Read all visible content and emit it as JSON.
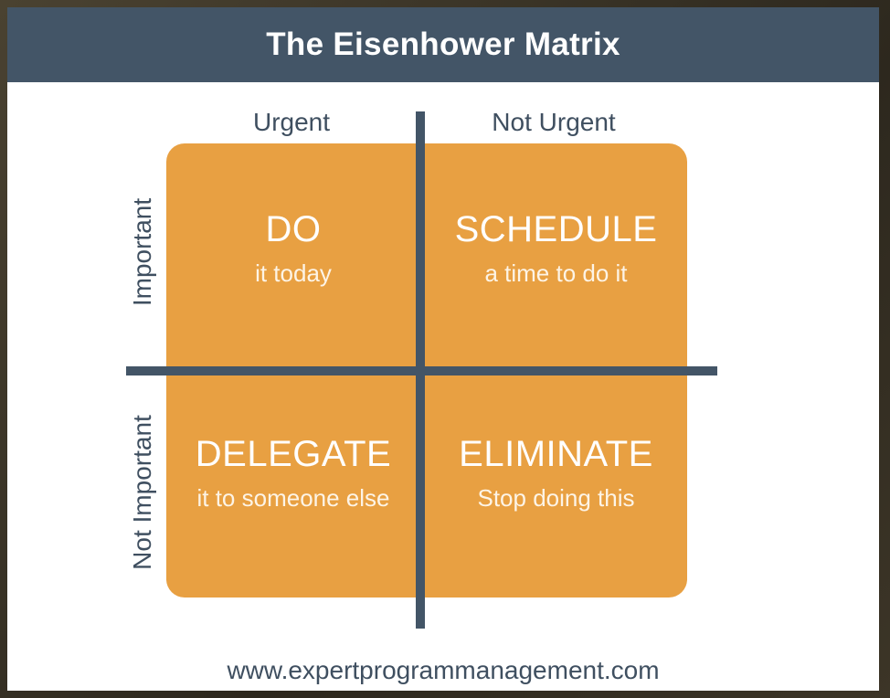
{
  "title": "The Eisenhower Matrix",
  "columns": {
    "urgent": "Urgent",
    "not_urgent": "Not Urgent"
  },
  "rows": {
    "important": "Important",
    "not_important": "Not Important"
  },
  "quadrants": {
    "do": {
      "heading": "DO",
      "sub": "it today"
    },
    "schedule": {
      "heading": "SCHEDULE",
      "sub": "a time to do it"
    },
    "delegate": {
      "heading": "DELEGATE",
      "sub": "it to someone else"
    },
    "eliminate": {
      "heading": "ELIMINATE",
      "sub": "Stop doing this"
    }
  },
  "footer": "www.expertprogrammanagement.com",
  "colors": {
    "header": "#435567",
    "quadrant": "#e8a042",
    "text_on_quadrant": "#ffffff",
    "label_text": "#3f4f60"
  }
}
